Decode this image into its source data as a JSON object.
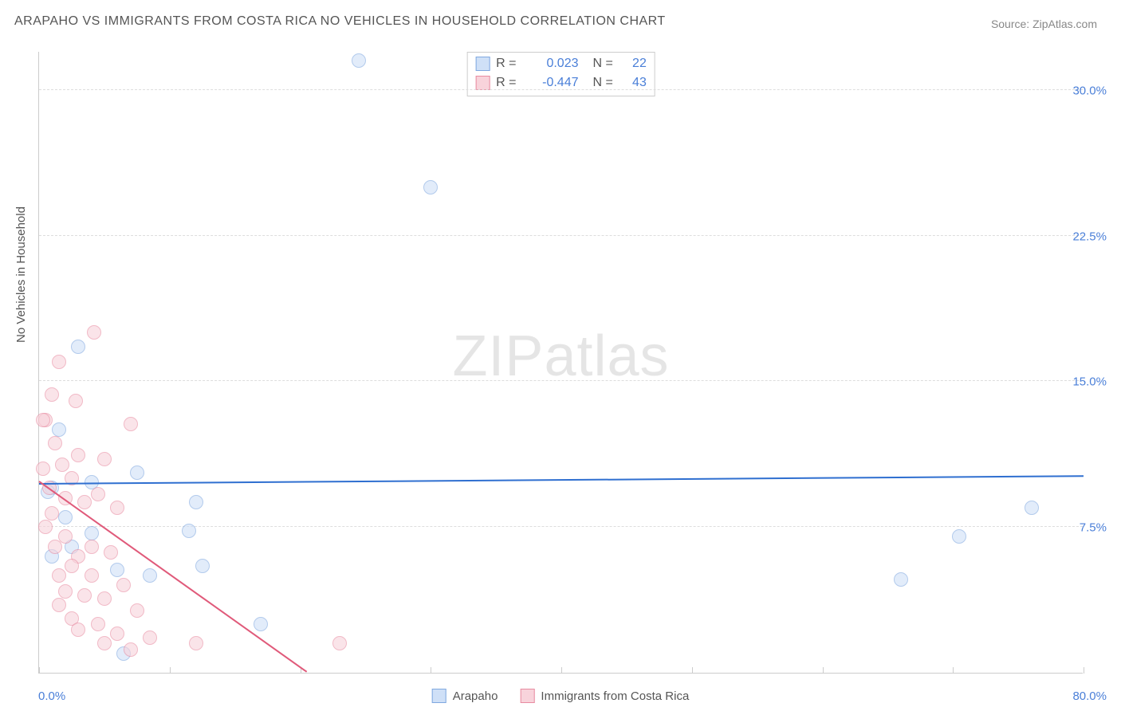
{
  "title": "ARAPAHO VS IMMIGRANTS FROM COSTA RICA NO VEHICLES IN HOUSEHOLD CORRELATION CHART",
  "source": "Source: ZipAtlas.com",
  "y_axis_label": "No Vehicles in Household",
  "watermark": {
    "bold": "ZIP",
    "light": "atlas"
  },
  "chart": {
    "type": "scatter",
    "background_color": "#ffffff",
    "grid_color": "#dddddd",
    "axis_color": "#cccccc",
    "xlim": [
      0,
      80
    ],
    "ylim": [
      0,
      32
    ],
    "x_min_label": "0.0%",
    "x_max_label": "80.0%",
    "y_ticks": [
      {
        "value": 7.5,
        "label": "7.5%"
      },
      {
        "value": 15.0,
        "label": "15.0%"
      },
      {
        "value": 22.5,
        "label": "22.5%"
      },
      {
        "value": 30.0,
        "label": "30.0%"
      }
    ],
    "x_tick_positions": [
      0,
      10,
      20,
      30,
      40,
      50,
      60,
      70,
      80
    ],
    "series": [
      {
        "name": "Arapaho",
        "key": "arapaho",
        "fill": "#cfe0f7",
        "stroke": "#7fa8e0",
        "fill_opacity": 0.6,
        "marker_radius": 9,
        "r": "0.023",
        "n": "22",
        "trend": {
          "x1": 0,
          "y1": 9.7,
          "x2": 80,
          "y2": 10.1,
          "color": "#2f6fd0",
          "width": 2
        },
        "points": [
          {
            "x": 24.5,
            "y": 31.5
          },
          {
            "x": 30.0,
            "y": 25.0
          },
          {
            "x": 3.0,
            "y": 16.8
          },
          {
            "x": 1.5,
            "y": 12.5
          },
          {
            "x": 7.5,
            "y": 10.3
          },
          {
            "x": 4.0,
            "y": 9.8
          },
          {
            "x": 1.0,
            "y": 9.5
          },
          {
            "x": 12.0,
            "y": 8.8
          },
          {
            "x": 2.0,
            "y": 8.0
          },
          {
            "x": 4.0,
            "y": 7.2
          },
          {
            "x": 0.7,
            "y": 9.3
          },
          {
            "x": 6.0,
            "y": 5.3
          },
          {
            "x": 12.5,
            "y": 5.5
          },
          {
            "x": 8.5,
            "y": 5.0
          },
          {
            "x": 11.5,
            "y": 7.3
          },
          {
            "x": 17.0,
            "y": 2.5
          },
          {
            "x": 6.5,
            "y": 1.0
          },
          {
            "x": 76.0,
            "y": 8.5
          },
          {
            "x": 70.5,
            "y": 7.0
          },
          {
            "x": 66.0,
            "y": 4.8
          },
          {
            "x": 2.5,
            "y": 6.5
          },
          {
            "x": 1.0,
            "y": 6.0
          }
        ]
      },
      {
        "name": "Immigrants from Costa Rica",
        "key": "costa_rica",
        "fill": "#f8d3db",
        "stroke": "#e88ba1",
        "fill_opacity": 0.6,
        "marker_radius": 9,
        "r": "-0.447",
        "n": "43",
        "trend": {
          "x1": 0,
          "y1": 9.8,
          "x2": 20.5,
          "y2": 0,
          "color": "#e05a7a",
          "width": 2
        },
        "points": [
          {
            "x": 4.2,
            "y": 17.5
          },
          {
            "x": 1.5,
            "y": 16.0
          },
          {
            "x": 1.0,
            "y": 14.3
          },
          {
            "x": 2.8,
            "y": 14.0
          },
          {
            "x": 0.5,
            "y": 13.0
          },
          {
            "x": 7.0,
            "y": 12.8
          },
          {
            "x": 1.2,
            "y": 11.8
          },
          {
            "x": 3.0,
            "y": 11.2
          },
          {
            "x": 5.0,
            "y": 11.0
          },
          {
            "x": 1.8,
            "y": 10.7
          },
          {
            "x": 2.5,
            "y": 10.0
          },
          {
            "x": 4.5,
            "y": 9.2
          },
          {
            "x": 0.8,
            "y": 9.5
          },
          {
            "x": 2.0,
            "y": 9.0
          },
          {
            "x": 3.5,
            "y": 8.8
          },
          {
            "x": 1.0,
            "y": 8.2
          },
          {
            "x": 6.0,
            "y": 8.5
          },
          {
            "x": 0.5,
            "y": 7.5
          },
          {
            "x": 2.0,
            "y": 7.0
          },
          {
            "x": 4.0,
            "y": 6.5
          },
          {
            "x": 1.2,
            "y": 6.5
          },
          {
            "x": 3.0,
            "y": 6.0
          },
          {
            "x": 5.5,
            "y": 6.2
          },
          {
            "x": 2.5,
            "y": 5.5
          },
          {
            "x": 1.5,
            "y": 5.0
          },
          {
            "x": 4.0,
            "y": 5.0
          },
          {
            "x": 6.5,
            "y": 4.5
          },
          {
            "x": 2.0,
            "y": 4.2
          },
          {
            "x": 3.5,
            "y": 4.0
          },
          {
            "x": 5.0,
            "y": 3.8
          },
          {
            "x": 1.5,
            "y": 3.5
          },
          {
            "x": 7.5,
            "y": 3.2
          },
          {
            "x": 2.5,
            "y": 2.8
          },
          {
            "x": 4.5,
            "y": 2.5
          },
          {
            "x": 6.0,
            "y": 2.0
          },
          {
            "x": 3.0,
            "y": 2.2
          },
          {
            "x": 8.5,
            "y": 1.8
          },
          {
            "x": 5.0,
            "y": 1.5
          },
          {
            "x": 12.0,
            "y": 1.5
          },
          {
            "x": 7.0,
            "y": 1.2
          },
          {
            "x": 23.0,
            "y": 1.5
          },
          {
            "x": 0.3,
            "y": 13.0
          },
          {
            "x": 0.3,
            "y": 10.5
          }
        ]
      }
    ]
  },
  "legend_labels": {
    "r_prefix": "R =",
    "n_prefix": "N ="
  }
}
